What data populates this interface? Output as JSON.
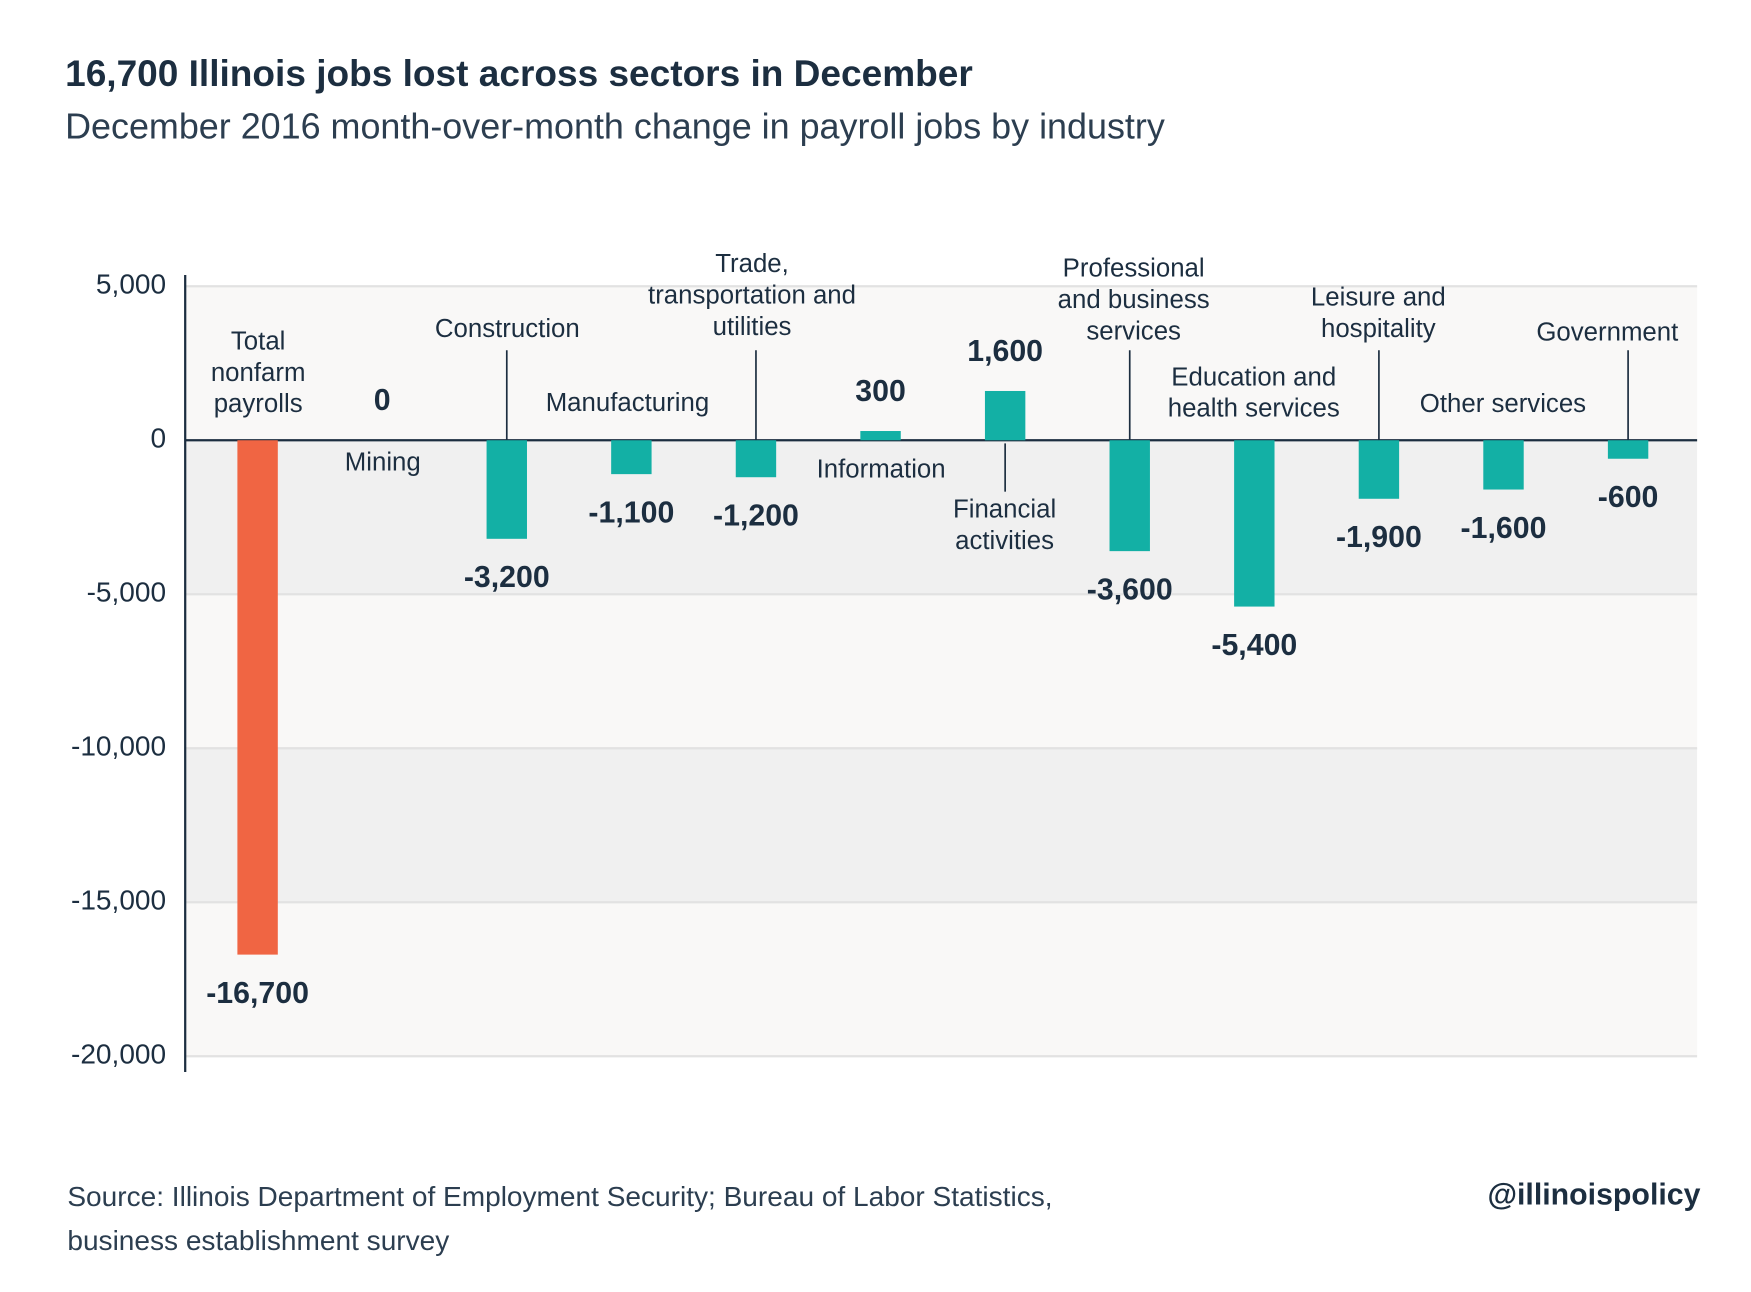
{
  "chart_data": {
    "type": "bar",
    "title": "16,700 Illinois jobs lost across sectors in December",
    "subtitle": "December 2016 month-over-month change in payroll jobs by industry",
    "categories": [
      "Total nonfarm payrolls",
      "Mining",
      "Construction",
      "Manufacturing",
      "Trade, transportation and utilities",
      "Information",
      "Financial activities",
      "Professional and business services",
      "Education and health services",
      "Leisure and hospitality",
      "Other services",
      "Government"
    ],
    "values": [
      -16700,
      0,
      -3200,
      -1100,
      -1200,
      300,
      1600,
      -3600,
      -5400,
      -1900,
      -1600,
      -600
    ],
    "value_labels": [
      "-16,700",
      "0",
      "-3,200",
      "-1,100",
      "-1,200",
      "300",
      "1,600",
      "-3,600",
      "-5,400",
      "-1,900",
      "-1,600",
      "-600"
    ],
    "colors": [
      "#f06543",
      "#13b0a5",
      "#13b0a5",
      "#13b0a5",
      "#13b0a5",
      "#13b0a5",
      "#13b0a5",
      "#13b0a5",
      "#13b0a5",
      "#13b0a5",
      "#13b0a5",
      "#13b0a5"
    ],
    "ylim": [
      -20000,
      5000
    ],
    "yticks": [
      {
        "value": -20000,
        "label": "-20,000"
      },
      {
        "value": -15000,
        "label": "-15,000"
      },
      {
        "value": -10000,
        "label": "-10,000"
      },
      {
        "value": -5000,
        "label": "-5,000"
      },
      0,
      {
        "value": 5000,
        "label": "5,000"
      }
    ],
    "grid": true,
    "source": [
      "Source: Illinois Department of Employment Security; Bureau of Labor Statistics,",
      "business establishment survey"
    ],
    "credit": "@illinoispolicy"
  }
}
